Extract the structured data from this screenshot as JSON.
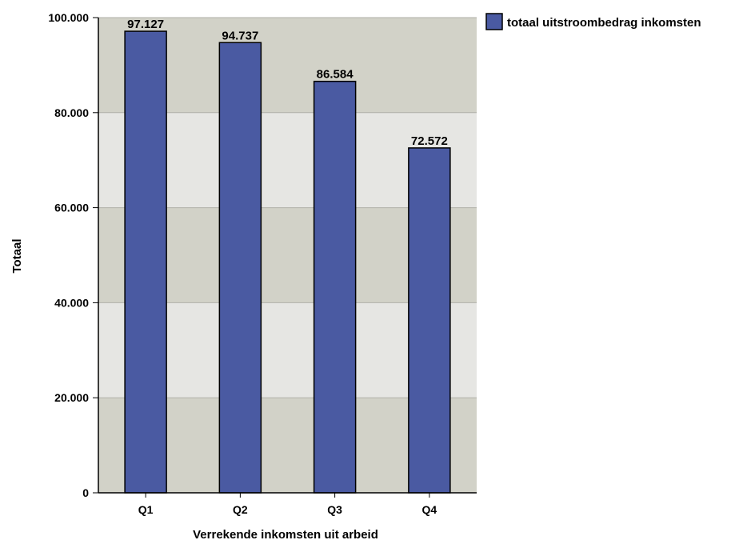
{
  "chart_data": {
    "type": "bar",
    "categories": [
      "Q1",
      "Q2",
      "Q3",
      "Q4"
    ],
    "series": [
      {
        "name": "totaal uitstroombedrag inkomsten",
        "values": [
          97127,
          94737,
          86584,
          72572
        ],
        "value_labels": [
          "97.127",
          "94.737",
          "86.584",
          "72.572"
        ]
      }
    ],
    "title": "",
    "xlabel": "Verrekende inkomsten uit arbeid",
    "ylabel": "Totaal",
    "ylim": [
      0,
      100000
    ],
    "y_ticks": [
      0,
      20000,
      40000,
      60000,
      80000,
      100000
    ],
    "y_tick_labels": [
      "0",
      "20.000",
      "40.000",
      "60.000",
      "80.000",
      "100.000"
    ],
    "grid": true,
    "legend_position": "top-right",
    "colors": {
      "bar_fill": "#4a5aa2",
      "bar_stroke": "#000000",
      "band_dark": "#d2d2c8",
      "band_light": "#e6e6e3",
      "grid_line": "#b0b0a8",
      "axis_line": "#000000"
    }
  }
}
